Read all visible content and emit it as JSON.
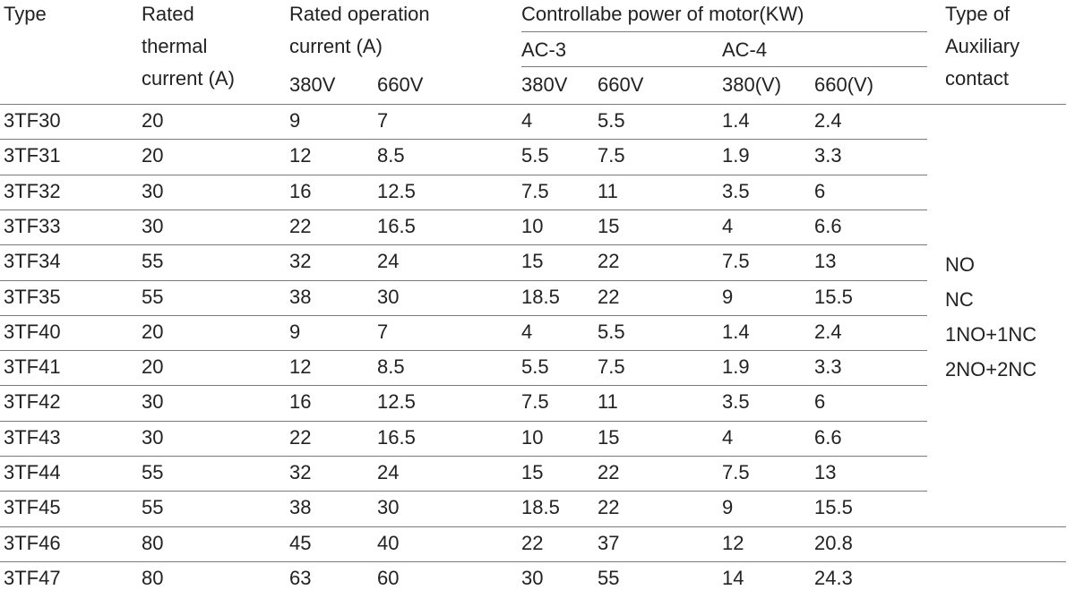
{
  "headers": {
    "type": "Type",
    "rated_thermal_current": [
      "Rated",
      "thermal",
      "current (A)"
    ],
    "rated_operation_current": [
      "Rated operation",
      "current (A)"
    ],
    "op_voltages": [
      "380V",
      "660V"
    ],
    "controllable_power": "Controllabe power of  motor(KW)",
    "ac3": "AC-3",
    "ac4": "AC-4",
    "ac3_voltages": [
      "380V",
      "660V"
    ],
    "ac4_voltages": [
      "380(V)",
      "660(V)"
    ],
    "aux_contact": [
      "Type of",
      "Auxiliary",
      "contact"
    ]
  },
  "rows": [
    {
      "type": "3TF30",
      "thermal": "20",
      "op380": "9",
      "op660": "7",
      "ac3_380": "4",
      "ac3_660": "5.5",
      "ac4_380": "1.4",
      "ac4_660": "2.4"
    },
    {
      "type": "3TF31",
      "thermal": "20",
      "op380": "12",
      "op660": "8.5",
      "ac3_380": "5.5",
      "ac3_660": "7.5",
      "ac4_380": "1.9",
      "ac4_660": "3.3"
    },
    {
      "type": "3TF32",
      "thermal": "30",
      "op380": "16",
      "op660": "12.5",
      "ac3_380": "7.5",
      "ac3_660": "11",
      "ac4_380": "3.5",
      "ac4_660": "6"
    },
    {
      "type": "3TF33",
      "thermal": "30",
      "op380": "22",
      "op660": "16.5",
      "ac3_380": "10",
      "ac3_660": "15",
      "ac4_380": "4",
      "ac4_660": "6.6"
    },
    {
      "type": "3TF34",
      "thermal": "55",
      "op380": "32",
      "op660": "24",
      "ac3_380": "15",
      "ac3_660": "22",
      "ac4_380": "7.5",
      "ac4_660": "13"
    },
    {
      "type": "3TF35",
      "thermal": "55",
      "op380": "38",
      "op660": "30",
      "ac3_380": "18.5",
      "ac3_660": "22",
      "ac4_380": "9",
      "ac4_660": "15.5"
    },
    {
      "type": "3TF40",
      "thermal": "20",
      "op380": "9",
      "op660": "7",
      "ac3_380": "4",
      "ac3_660": "5.5",
      "ac4_380": "1.4",
      "ac4_660": "2.4"
    },
    {
      "type": "3TF41",
      "thermal": "20",
      "op380": "12",
      "op660": "8.5",
      "ac3_380": "5.5",
      "ac3_660": "7.5",
      "ac4_380": "1.9",
      "ac4_660": "3.3"
    },
    {
      "type": "3TF42",
      "thermal": "30",
      "op380": "16",
      "op660": "12.5",
      "ac3_380": "7.5",
      "ac3_660": "11",
      "ac4_380": "3.5",
      "ac4_660": "6"
    },
    {
      "type": "3TF43",
      "thermal": "30",
      "op380": "22",
      "op660": "16.5",
      "ac3_380": "10",
      "ac3_660": "15",
      "ac4_380": "4",
      "ac4_660": "6.6"
    },
    {
      "type": "3TF44",
      "thermal": "55",
      "op380": "32",
      "op660": "24",
      "ac3_380": "15",
      "ac3_660": "22",
      "ac4_380": "7.5",
      "ac4_660": "13"
    },
    {
      "type": "3TF45",
      "thermal": "55",
      "op380": "38",
      "op660": "30",
      "ac3_380": "18.5",
      "ac3_660": "22",
      "ac4_380": "9",
      "ac4_660": "15.5"
    },
    {
      "type": "3TF46",
      "thermal": "80",
      "op380": "45",
      "op660": "40",
      "ac3_380": "22",
      "ac3_660": "37",
      "ac4_380": "12",
      "ac4_660": "20.8"
    },
    {
      "type": "3TF47",
      "thermal": "80",
      "op380": "63",
      "op660": "60",
      "ac3_380": "30",
      "ac3_660": "55",
      "ac4_380": "14",
      "ac4_660": "24.3"
    }
  ],
  "aux_contact_types": [
    "NO",
    "NC",
    "1NO+1NC",
    "2NO+2NC"
  ]
}
